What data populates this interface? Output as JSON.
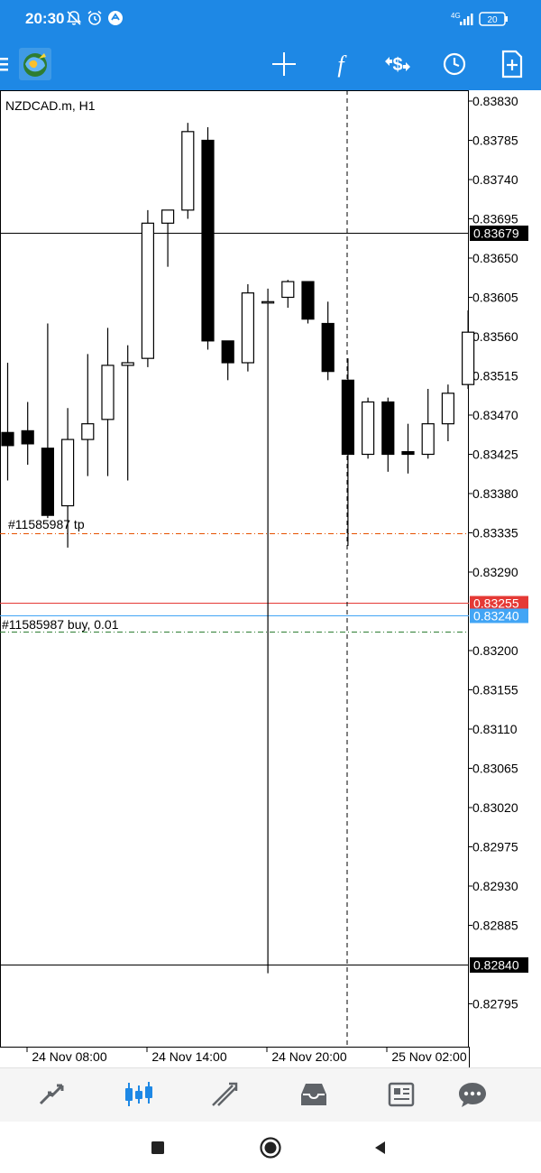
{
  "status_bar": {
    "time": "20:30",
    "network": "4G",
    "battery": "20",
    "icons": [
      "mute-icon",
      "alarm-icon",
      "app-notification-icon",
      "signal-icon",
      "battery-icon"
    ]
  },
  "toolbar": {
    "icons": [
      "menu-icon",
      "app-logo-icon",
      "crosshair-icon",
      "indicators-icon",
      "symbol-change-icon",
      "timeframe-icon",
      "new-order-icon"
    ]
  },
  "chart": {
    "symbol_label": "NZDCAD.m, H1",
    "tp_label": "#11585987 tp",
    "position_label": "#11585987 buy, 0.01",
    "price_ticks": [
      "0.83830",
      "0.83785",
      "0.83740",
      "0.83695",
      "0.83650",
      "0.83605",
      "0.83560",
      "0.83515",
      "0.83470",
      "0.83425",
      "0.83380",
      "0.83335",
      "0.83290",
      "0.83200",
      "0.83155",
      "0.83110",
      "0.83065",
      "0.83020",
      "0.82975",
      "0.82930",
      "0.82885",
      "0.82795"
    ],
    "time_ticks": [
      "24 Nov 08:00",
      "24 Nov 14:00",
      "24 Nov 20:00",
      "25 Nov 02:00"
    ],
    "hline_upper": "0.83679",
    "bid_price": "0.83255",
    "ask_price": "0.83240",
    "hline_lower": "0.82840",
    "colors": {
      "bid": "#e53935",
      "ask": "#42a5f5",
      "tp_line": "#e65100",
      "entry_line": "#2e7d32",
      "hline": "#000000"
    }
  },
  "chart_data": {
    "type": "candlestick",
    "symbol": "NZDCAD.m",
    "timeframe": "H1",
    "x_ticks": [
      "24 Nov 08:00",
      "24 Nov 14:00",
      "24 Nov 20:00",
      "25 Nov 02:00"
    ],
    "ylim": [
      0.8276,
      0.8384
    ],
    "candles": [
      {
        "o": 0.8345,
        "h": 0.8353,
        "l": 0.83395,
        "c": 0.83435
      },
      {
        "o": 0.83452,
        "h": 0.83485,
        "l": 0.83413,
        "c": 0.83437
      },
      {
        "o": 0.83432,
        "h": 0.83575,
        "l": 0.83352,
        "c": 0.83355
      },
      {
        "o": 0.83366,
        "h": 0.83478,
        "l": 0.83318,
        "c": 0.83442
      },
      {
        "o": 0.83442,
        "h": 0.8354,
        "l": 0.834,
        "c": 0.8346
      },
      {
        "o": 0.83465,
        "h": 0.8357,
        "l": 0.834,
        "c": 0.83527
      },
      {
        "o": 0.83527,
        "h": 0.8355,
        "l": 0.83395,
        "c": 0.8353
      },
      {
        "o": 0.83535,
        "h": 0.83705,
        "l": 0.83525,
        "c": 0.8369
      },
      {
        "o": 0.8369,
        "h": 0.83705,
        "l": 0.8364,
        "c": 0.83705
      },
      {
        "o": 0.83705,
        "h": 0.83805,
        "l": 0.83695,
        "c": 0.83795
      },
      {
        "o": 0.83785,
        "h": 0.838,
        "l": 0.83545,
        "c": 0.83555
      },
      {
        "o": 0.83555,
        "h": 0.83553,
        "l": 0.8351,
        "c": 0.8353
      },
      {
        "o": 0.8353,
        "h": 0.8362,
        "l": 0.8352,
        "c": 0.8361
      },
      {
        "o": 0.836,
        "h": 0.83615,
        "l": 0.8283,
        "c": 0.836
      },
      {
        "o": 0.83605,
        "h": 0.83625,
        "l": 0.83593,
        "c": 0.83623
      },
      {
        "o": 0.83623,
        "h": 0.83623,
        "l": 0.83575,
        "c": 0.8358
      },
      {
        "o": 0.83575,
        "h": 0.836,
        "l": 0.8351,
        "c": 0.8352
      },
      {
        "o": 0.8351,
        "h": 0.83535,
        "l": 0.8332,
        "c": 0.83425
      },
      {
        "o": 0.83425,
        "h": 0.8349,
        "l": 0.8342,
        "c": 0.83485
      },
      {
        "o": 0.83485,
        "h": 0.8349,
        "l": 0.83405,
        "c": 0.83425
      },
      {
        "o": 0.83428,
        "h": 0.8346,
        "l": 0.83403,
        "c": 0.83425
      },
      {
        "o": 0.83425,
        "h": 0.835,
        "l": 0.8342,
        "c": 0.8346
      },
      {
        "o": 0.8346,
        "h": 0.83505,
        "l": 0.8344,
        "c": 0.83495
      },
      {
        "o": 0.83505,
        "h": 0.8359,
        "l": 0.835,
        "c": 0.83565
      }
    ]
  },
  "bottom_nav": {
    "icons": [
      "quotes-icon",
      "chart-icon",
      "trade-icon",
      "history-icon",
      "news-icon",
      "chat-icon"
    ],
    "active": "chart-icon"
  },
  "system_nav": {
    "icons": [
      "recents-icon",
      "home-icon",
      "back-icon"
    ]
  }
}
